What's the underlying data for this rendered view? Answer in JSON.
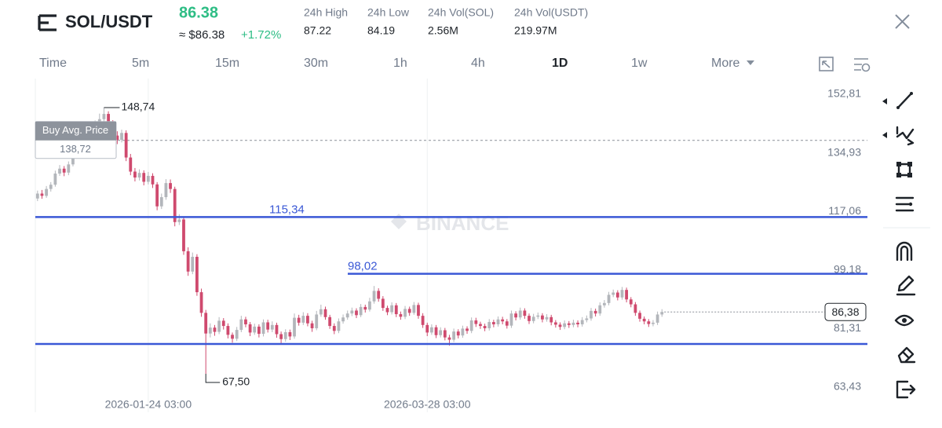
{
  "header": {
    "symbol": "SOL/USDT",
    "price": "86.38",
    "approx": "≈ $86.38",
    "change": "+1.72%",
    "stats": [
      {
        "label": "24h High",
        "value": "87.22"
      },
      {
        "label": "24h Low",
        "value": "84.19"
      },
      {
        "label": "24h Vol(SOL)",
        "value": "2.56M"
      },
      {
        "label": "24h Vol(USDT)",
        "value": "219.97M"
      }
    ]
  },
  "timeframes": [
    "Time",
    "5m",
    "15m",
    "30m",
    "1h",
    "4h",
    "1D",
    "1w",
    "More"
  ],
  "active_timeframe": 6,
  "chart_data": {
    "type": "candlestick",
    "watermark": "BINANCE",
    "up_color": "#b3b6bb",
    "down_color": "#cf4a6e",
    "line_color": "#3a58d6",
    "xlim": [
      -0.5,
      187.4
    ],
    "xticks": [
      {
        "value": 25,
        "label": "2026-01-24 03:00"
      },
      {
        "value": 88,
        "label": "2026-03-28 03:00"
      }
    ],
    "ylim": [
      60.55,
      157.6
    ],
    "yticks": [
      {
        "value": 152.81,
        "label": "152,81"
      },
      {
        "value": 134.93,
        "label": "134,93"
      },
      {
        "value": 117.06,
        "label": "117,06"
      },
      {
        "value": 99.18,
        "label": "99,18"
      },
      {
        "value": 81.31,
        "label": "81,31"
      },
      {
        "value": 63.43,
        "label": "63,43"
      }
    ],
    "max_label": "148,74",
    "min_label": "67,50",
    "price_lines": [
      {
        "value": 115.34,
        "label": "115,34"
      },
      {
        "value": 98.02,
        "label": "98,02"
      },
      {
        "value": 76.6
      }
    ],
    "buy_avg": {
      "label": "Buy Avg. Price",
      "value": 138.72,
      "value_label": "138,72"
    },
    "last_price": {
      "value": 86.38,
      "label": "86,38"
    },
    "candles": [
      [
        121.0,
        123.4,
        120.2,
        122.5
      ],
      [
        122.5,
        123.6,
        120.9,
        121.8
      ],
      [
        121.8,
        124.8,
        121.2,
        123.9
      ],
      [
        123.9,
        126.0,
        123.1,
        125.2
      ],
      [
        125.2,
        129.5,
        124.6,
        128.6
      ],
      [
        128.6,
        131.2,
        127.9,
        130.1
      ],
      [
        130.1,
        130.9,
        127.8,
        128.9
      ],
      [
        128.9,
        132.3,
        128.1,
        131.4
      ],
      [
        131.4,
        137.0,
        130.8,
        136.2
      ],
      [
        136.2,
        138.9,
        135.4,
        137.8
      ],
      [
        137.8,
        138.6,
        135.7,
        136.5
      ],
      [
        136.5,
        140.6,
        135.9,
        139.7
      ],
      [
        139.7,
        142.4,
        138.8,
        141.3
      ],
      [
        141.3,
        144.8,
        140.6,
        143.9
      ],
      [
        143.9,
        146.9,
        143.1,
        145.2
      ],
      [
        145.2,
        148.74,
        144.5,
        146.8
      ],
      [
        146.8,
        147.6,
        143.2,
        144.1
      ],
      [
        144.1,
        144.9,
        139.1,
        140.2
      ],
      [
        140.2,
        141.5,
        137.6,
        138.9
      ],
      [
        138.9,
        142.0,
        138.1,
        141.0
      ],
      [
        141.0,
        141.8,
        132.4,
        133.5
      ],
      [
        133.5,
        134.6,
        128.1,
        129.2
      ],
      [
        129.2,
        130.3,
        126.2,
        127.4
      ],
      [
        127.4,
        129.9,
        126.5,
        128.8
      ],
      [
        128.8,
        129.6,
        125.0,
        126.1
      ],
      [
        126.1,
        129.1,
        125.3,
        127.9
      ],
      [
        127.9,
        128.7,
        124.2,
        125.3
      ],
      [
        125.3,
        126.0,
        117.4,
        118.6
      ],
      [
        118.6,
        122.5,
        117.8,
        121.4
      ],
      [
        121.4,
        126.9,
        120.6,
        125.7
      ],
      [
        125.7,
        126.8,
        122.7,
        123.9
      ],
      [
        123.9,
        124.6,
        112.5,
        113.8
      ],
      [
        113.8,
        116.2,
        112.9,
        114.6
      ],
      [
        114.6,
        115.3,
        103.8,
        104.9
      ],
      [
        104.9,
        106.1,
        97.4,
        98.7
      ],
      [
        98.7,
        104.5,
        97.9,
        103.2
      ],
      [
        103.2,
        104.0,
        91.3,
        92.4
      ],
      [
        92.4,
        93.5,
        84.9,
        86.1
      ],
      [
        86.1,
        87.0,
        67.5,
        79.8
      ],
      [
        79.8,
        82.9,
        78.6,
        81.6
      ],
      [
        81.6,
        82.4,
        79.1,
        80.3
      ],
      [
        80.3,
        84.8,
        79.6,
        83.7
      ],
      [
        83.7,
        84.5,
        81.0,
        82.1
      ],
      [
        82.1,
        82.9,
        78.3,
        79.4
      ],
      [
        79.4,
        80.1,
        77.0,
        78.2
      ],
      [
        78.2,
        81.8,
        77.5,
        80.9
      ],
      [
        80.9,
        85.2,
        80.2,
        84.1
      ],
      [
        84.1,
        84.9,
        81.7,
        82.6
      ],
      [
        82.6,
        83.3,
        79.0,
        80.1
      ],
      [
        80.1,
        82.8,
        79.4,
        81.9
      ],
      [
        81.9,
        82.6,
        78.6,
        79.7
      ],
      [
        79.7,
        84.1,
        78.9,
        83.2
      ],
      [
        83.2,
        84.0,
        80.1,
        81.0
      ],
      [
        81.0,
        83.5,
        80.2,
        82.4
      ],
      [
        82.4,
        83.1,
        78.5,
        79.6
      ],
      [
        79.6,
        80.4,
        76.6,
        78.1
      ],
      [
        78.1,
        81.1,
        77.3,
        80.2
      ],
      [
        80.2,
        81.0,
        77.8,
        78.9
      ],
      [
        78.9,
        85.9,
        78.2,
        84.6
      ],
      [
        84.6,
        85.5,
        82.2,
        83.1
      ],
      [
        83.1,
        86.3,
        82.4,
        85.2
      ],
      [
        85.2,
        86.0,
        82.0,
        82.9
      ],
      [
        82.9,
        83.7,
        80.3,
        81.4
      ],
      [
        81.4,
        86.7,
        80.8,
        85.6
      ],
      [
        85.6,
        88.6,
        84.9,
        87.2
      ],
      [
        87.2,
        88.0,
        84.0,
        84.8
      ],
      [
        84.8,
        85.5,
        81.2,
        82.1
      ],
      [
        82.1,
        82.9,
        79.6,
        80.6
      ],
      [
        80.6,
        84.4,
        79.9,
        83.5
      ],
      [
        83.5,
        85.6,
        82.8,
        84.7
      ],
      [
        84.7,
        86.8,
        84.0,
        85.9
      ],
      [
        85.9,
        87.7,
        85.1,
        86.8
      ],
      [
        86.8,
        87.5,
        84.5,
        85.4
      ],
      [
        85.4,
        88.8,
        84.8,
        87.9
      ],
      [
        87.9,
        88.6,
        86.2,
        87.1
      ],
      [
        87.1,
        90.7,
        86.5,
        89.6
      ],
      [
        89.6,
        94.3,
        88.9,
        92.8
      ],
      [
        92.8,
        93.6,
        89.5,
        90.4
      ],
      [
        90.4,
        91.2,
        86.7,
        87.6
      ],
      [
        87.6,
        88.3,
        85.4,
        86.3
      ],
      [
        86.3,
        89.3,
        85.6,
        88.4
      ],
      [
        88.4,
        89.1,
        84.8,
        85.7
      ],
      [
        85.7,
        86.5,
        84.0,
        84.9
      ],
      [
        84.9,
        88.2,
        84.2,
        87.3
      ],
      [
        87.3,
        88.0,
        85.2,
        86.1
      ],
      [
        86.1,
        89.4,
        85.5,
        88.5
      ],
      [
        88.5,
        89.2,
        84.3,
        85.2
      ],
      [
        85.2,
        86.0,
        81.5,
        82.4
      ],
      [
        82.4,
        83.1,
        79.0,
        80.1
      ],
      [
        80.1,
        82.6,
        79.4,
        81.7
      ],
      [
        81.7,
        82.4,
        78.4,
        79.3
      ],
      [
        79.3,
        81.7,
        78.6,
        80.8
      ],
      [
        80.8,
        81.5,
        77.7,
        78.6
      ],
      [
        78.6,
        79.4,
        76.1,
        77.9
      ],
      [
        77.9,
        81.3,
        77.2,
        80.4
      ],
      [
        80.4,
        81.1,
        78.3,
        79.2
      ],
      [
        79.2,
        82.2,
        78.5,
        81.3
      ],
      [
        81.3,
        82.0,
        79.7,
        80.6
      ],
      [
        80.6,
        84.7,
        79.9,
        83.8
      ],
      [
        83.8,
        84.6,
        81.8,
        82.7
      ],
      [
        82.7,
        83.4,
        81.2,
        82.1
      ],
      [
        82.1,
        82.8,
        80.5,
        81.4
      ],
      [
        81.4,
        84.2,
        80.7,
        83.3
      ],
      [
        83.3,
        84.0,
        81.7,
        82.6
      ],
      [
        82.6,
        85.0,
        81.9,
        84.1
      ],
      [
        84.1,
        84.9,
        82.6,
        83.5
      ],
      [
        83.5,
        84.2,
        81.3,
        82.2
      ],
      [
        82.2,
        86.8,
        81.5,
        85.9
      ],
      [
        85.9,
        86.6,
        83.8,
        84.7
      ],
      [
        84.7,
        87.7,
        84.0,
        86.8
      ],
      [
        86.8,
        87.5,
        84.3,
        85.2
      ],
      [
        85.2,
        85.9,
        82.7,
        83.6
      ],
      [
        83.6,
        85.8,
        82.9,
        84.9
      ],
      [
        84.9,
        86.2,
        84.2,
        85.3
      ],
      [
        85.3,
        86.0,
        83.2,
        84.1
      ],
      [
        84.1,
        85.7,
        83.4,
        84.8
      ],
      [
        84.8,
        85.5,
        82.3,
        83.2
      ],
      [
        83.2,
        83.9,
        81.6,
        82.5
      ],
      [
        82.5,
        83.2,
        80.9,
        81.8
      ],
      [
        81.8,
        83.8,
        81.1,
        82.9
      ],
      [
        82.9,
        83.6,
        81.5,
        82.4
      ],
      [
        82.4,
        84.0,
        81.7,
        83.1
      ],
      [
        83.1,
        83.8,
        81.7,
        82.6
      ],
      [
        82.6,
        84.8,
        81.9,
        83.9
      ],
      [
        83.9,
        85.3,
        83.2,
        84.4
      ],
      [
        84.4,
        87.6,
        83.7,
        86.7
      ],
      [
        86.7,
        87.4,
        85.0,
        85.9
      ],
      [
        85.9,
        89.3,
        85.2,
        88.4
      ],
      [
        88.4,
        90.0,
        87.7,
        89.1
      ],
      [
        89.1,
        92.5,
        88.4,
        91.6
      ],
      [
        91.6,
        93.2,
        90.9,
        92.3
      ],
      [
        92.3,
        93.0,
        89.9,
        90.8
      ],
      [
        90.8,
        94.0,
        90.1,
        93.1
      ],
      [
        93.1,
        93.8,
        89.3,
        90.2
      ],
      [
        90.2,
        90.9,
        87.8,
        88.7
      ],
      [
        88.7,
        89.4,
        85.2,
        86.1
      ],
      [
        86.1,
        86.8,
        83.4,
        84.3
      ],
      [
        84.3,
        85.0,
        82.6,
        83.5
      ],
      [
        83.5,
        84.2,
        81.8,
        82.7
      ],
      [
        82.7,
        83.9,
        82.0,
        83.1
      ],
      [
        83.1,
        86.5,
        82.4,
        85.6
      ],
      [
        85.6,
        87.22,
        84.9,
        86.38
      ]
    ]
  }
}
